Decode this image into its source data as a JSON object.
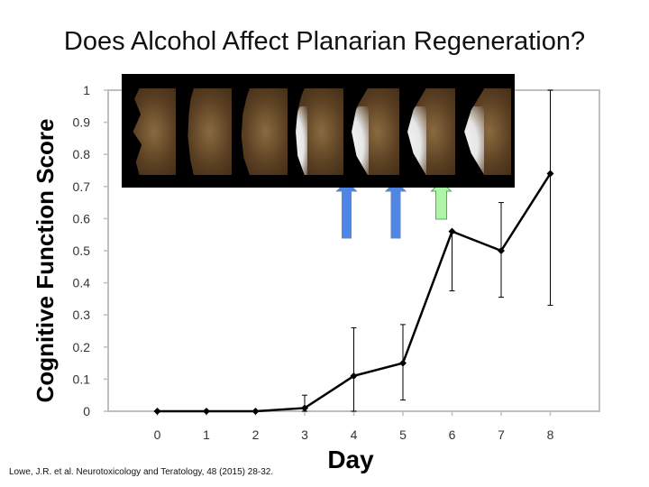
{
  "slide": {
    "title": "Does Alcohol Affect Planarian Regeneration?",
    "citation": "Lowe, J.R. et al.  Neurotoxicology and Teratology, 48 (2015) 28-32."
  },
  "images": {
    "panels": [
      {
        "name": "regeneration-day-0"
      },
      {
        "name": "regeneration-day-1"
      },
      {
        "name": "regeneration-day-2"
      },
      {
        "name": "regeneration-day-3"
      },
      {
        "name": "regeneration-day-4"
      },
      {
        "name": "regeneration-day-5"
      },
      {
        "name": "regeneration-day-6"
      }
    ],
    "arrows": [
      {
        "name": "arrow-day-4",
        "day": 4,
        "color": "#4f86e6"
      },
      {
        "name": "arrow-day-5",
        "day": 5,
        "color": "#4f86e6"
      },
      {
        "name": "arrow-day-6",
        "day": 6,
        "color": "#aef5a8"
      }
    ]
  },
  "chart_data": {
    "type": "line",
    "title": "",
    "xlabel": "Day",
    "ylabel": "Cognitive Function Score",
    "x": [
      0,
      1,
      2,
      3,
      4,
      5,
      6,
      7,
      8
    ],
    "y": [
      0,
      0,
      0,
      0.01,
      0.11,
      0.15,
      0.56,
      0.5,
      0.74
    ],
    "error_upper": [
      0,
      0,
      0,
      0.05,
      0.26,
      0.27,
      0.56,
      0.65,
      1.0
    ],
    "error_lower": [
      0,
      0,
      0,
      0,
      0,
      0.035,
      0.375,
      0.355,
      0.33
    ],
    "xticks": [
      "0",
      "1",
      "2",
      "3",
      "4",
      "5",
      "6",
      "7",
      "8"
    ],
    "yticks": [
      "0",
      "0.1",
      "0.2",
      "0.3",
      "0.4",
      "0.5",
      "0.6",
      "0.7",
      "0.8",
      "0.9",
      "1"
    ],
    "xlim": [
      -1,
      9
    ],
    "ylim": [
      0,
      1
    ],
    "grid": false,
    "colors": {
      "line": "#000000",
      "axis": "#bfbfbf",
      "marker": "#000000"
    }
  }
}
